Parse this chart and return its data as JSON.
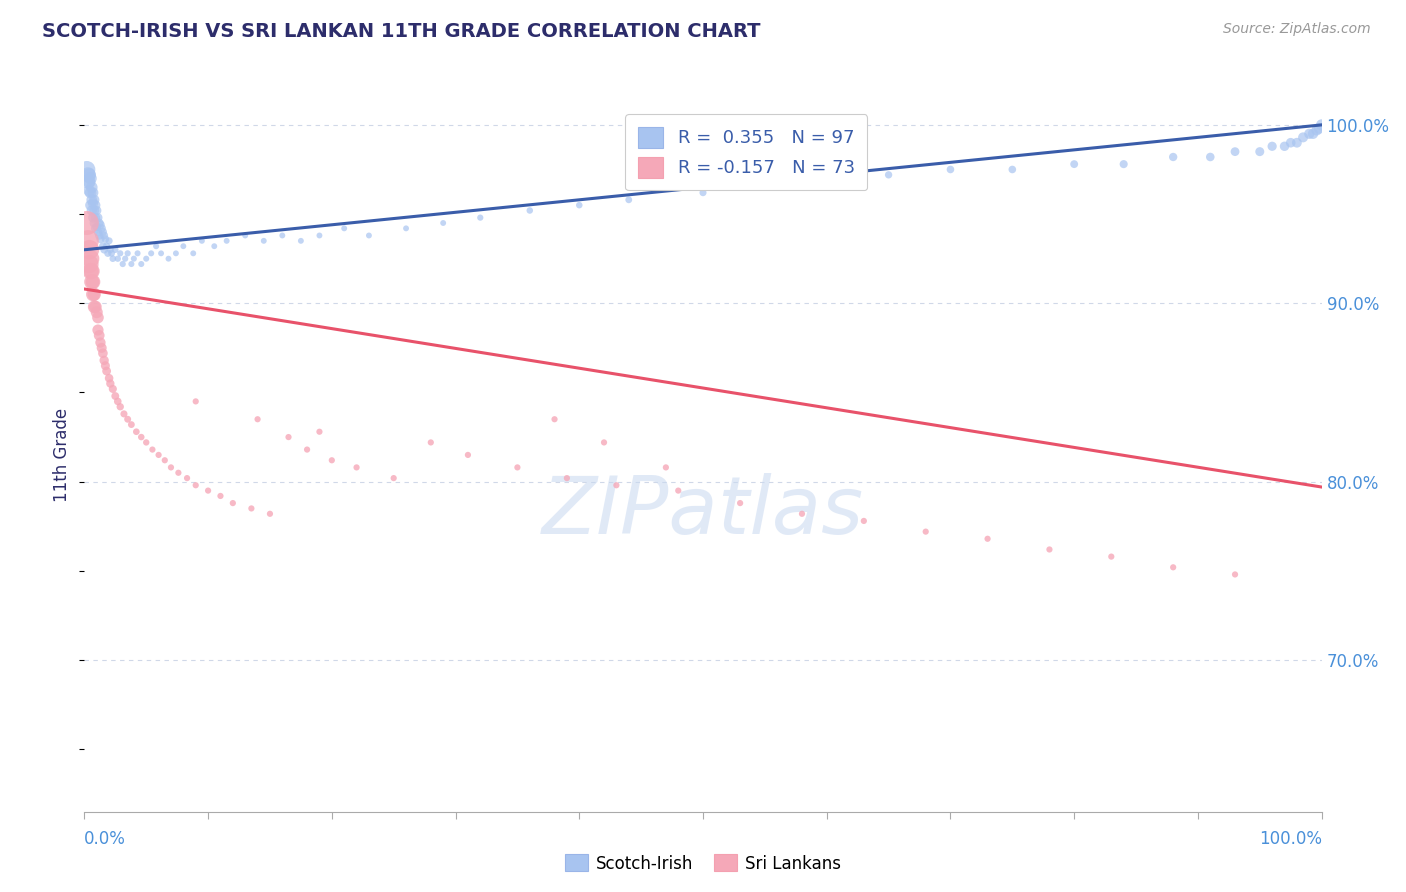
{
  "title": "SCOTCH-IRISH VS SRI LANKAN 11TH GRADE CORRELATION CHART",
  "source": "Source: ZipAtlas.com",
  "ylabel": "11th Grade",
  "xmin": 0.0,
  "xmax": 1.0,
  "ymin": 0.615,
  "ymax": 1.015,
  "yticks": [
    0.7,
    0.8,
    0.9,
    1.0
  ],
  "ytick_labels": [
    "70.0%",
    "80.0%",
    "90.0%",
    "100.0%"
  ],
  "legend_r_blue": "R =  0.355",
  "legend_n_blue": "N = 97",
  "legend_r_pink": "R = -0.157",
  "legend_n_pink": "N = 73",
  "color_blue": "#a8c4f0",
  "color_blue_line": "#3a5daa",
  "color_pink": "#f5a8b8",
  "color_pink_line": "#e8526a",
  "title_color": "#2d2d6b",
  "axis_label_color": "#2d2d6b",
  "tick_color": "#4a90d9",
  "grid_color": "#d0d8e8",
  "watermark": "ZIPatlas",
  "blue_line_x": [
    0.0,
    1.0
  ],
  "blue_line_y": [
    0.93,
    1.0
  ],
  "pink_line_x": [
    0.0,
    1.0
  ],
  "pink_line_y": [
    0.908,
    0.797
  ],
  "scotch_irish_x": [
    0.002,
    0.003,
    0.003,
    0.004,
    0.004,
    0.004,
    0.005,
    0.005,
    0.005,
    0.006,
    0.006,
    0.006,
    0.007,
    0.007,
    0.007,
    0.008,
    0.008,
    0.008,
    0.009,
    0.009,
    0.009,
    0.01,
    0.01,
    0.011,
    0.011,
    0.012,
    0.012,
    0.013,
    0.013,
    0.014,
    0.015,
    0.015,
    0.016,
    0.016,
    0.017,
    0.018,
    0.019,
    0.02,
    0.021,
    0.022,
    0.023,
    0.025,
    0.027,
    0.029,
    0.031,
    0.033,
    0.035,
    0.038,
    0.04,
    0.043,
    0.046,
    0.05,
    0.054,
    0.058,
    0.062,
    0.068,
    0.074,
    0.08,
    0.088,
    0.095,
    0.105,
    0.115,
    0.13,
    0.145,
    0.16,
    0.175,
    0.19,
    0.21,
    0.23,
    0.26,
    0.29,
    0.32,
    0.36,
    0.4,
    0.44,
    0.5,
    0.55,
    0.6,
    0.65,
    0.7,
    0.75,
    0.8,
    0.84,
    0.88,
    0.91,
    0.93,
    0.95,
    0.96,
    0.97,
    0.975,
    0.98,
    0.985,
    0.99,
    0.993,
    0.996,
    0.998,
    1.0
  ],
  "scotch_irish_y": [
    0.975,
    0.972,
    0.968,
    0.972,
    0.968,
    0.963,
    0.97,
    0.962,
    0.955,
    0.965,
    0.958,
    0.952,
    0.962,
    0.956,
    0.948,
    0.958,
    0.952,
    0.945,
    0.955,
    0.948,
    0.942,
    0.952,
    0.943,
    0.948,
    0.94,
    0.945,
    0.938,
    0.944,
    0.936,
    0.942,
    0.94,
    0.932,
    0.938,
    0.93,
    0.936,
    0.932,
    0.928,
    0.935,
    0.93,
    0.928,
    0.925,
    0.93,
    0.925,
    0.928,
    0.922,
    0.925,
    0.928,
    0.922,
    0.925,
    0.928,
    0.922,
    0.925,
    0.928,
    0.932,
    0.928,
    0.925,
    0.928,
    0.932,
    0.928,
    0.935,
    0.932,
    0.935,
    0.938,
    0.935,
    0.938,
    0.935,
    0.938,
    0.942,
    0.938,
    0.942,
    0.945,
    0.948,
    0.952,
    0.955,
    0.958,
    0.962,
    0.965,
    0.968,
    0.972,
    0.975,
    0.975,
    0.978,
    0.978,
    0.982,
    0.982,
    0.985,
    0.985,
    0.988,
    0.988,
    0.99,
    0.99,
    0.993,
    0.995,
    0.995,
    0.997,
    0.998,
    1.0
  ],
  "scotch_irish_sizes": [
    150,
    120,
    100,
    90,
    80,
    70,
    80,
    70,
    60,
    70,
    60,
    55,
    60,
    55,
    50,
    55,
    50,
    45,
    50,
    45,
    42,
    45,
    40,
    42,
    38,
    40,
    36,
    38,
    34,
    36,
    34,
    32,
    32,
    30,
    30,
    28,
    27,
    26,
    25,
    24,
    23,
    22,
    21,
    20,
    20,
    20,
    20,
    19,
    19,
    19,
    19,
    19,
    19,
    19,
    18,
    18,
    18,
    18,
    18,
    18,
    18,
    18,
    18,
    18,
    18,
    18,
    18,
    18,
    18,
    18,
    18,
    20,
    22,
    22,
    24,
    26,
    26,
    28,
    28,
    30,
    30,
    32,
    34,
    36,
    38,
    40,
    42,
    44,
    46,
    48,
    50,
    52,
    54,
    56,
    58,
    60,
    65
  ],
  "sri_lankan_x": [
    0.002,
    0.003,
    0.004,
    0.004,
    0.005,
    0.005,
    0.006,
    0.006,
    0.007,
    0.007,
    0.008,
    0.008,
    0.009,
    0.01,
    0.011,
    0.011,
    0.012,
    0.013,
    0.014,
    0.015,
    0.016,
    0.017,
    0.018,
    0.02,
    0.021,
    0.023,
    0.025,
    0.027,
    0.029,
    0.032,
    0.035,
    0.038,
    0.042,
    0.046,
    0.05,
    0.055,
    0.06,
    0.065,
    0.07,
    0.076,
    0.083,
    0.09,
    0.1,
    0.11,
    0.12,
    0.135,
    0.15,
    0.165,
    0.18,
    0.2,
    0.22,
    0.25,
    0.28,
    0.31,
    0.35,
    0.39,
    0.43,
    0.48,
    0.53,
    0.58,
    0.63,
    0.68,
    0.73,
    0.78,
    0.83,
    0.88,
    0.93,
    0.47,
    0.38,
    0.42,
    0.09,
    0.14,
    0.19
  ],
  "sri_lankan_y": [
    0.945,
    0.935,
    0.93,
    0.922,
    0.925,
    0.918,
    0.918,
    0.912,
    0.912,
    0.905,
    0.905,
    0.898,
    0.898,
    0.895,
    0.892,
    0.885,
    0.882,
    0.878,
    0.875,
    0.872,
    0.868,
    0.865,
    0.862,
    0.858,
    0.855,
    0.852,
    0.848,
    0.845,
    0.842,
    0.838,
    0.835,
    0.832,
    0.828,
    0.825,
    0.822,
    0.818,
    0.815,
    0.812,
    0.808,
    0.805,
    0.802,
    0.798,
    0.795,
    0.792,
    0.788,
    0.785,
    0.782,
    0.825,
    0.818,
    0.812,
    0.808,
    0.802,
    0.822,
    0.815,
    0.808,
    0.802,
    0.798,
    0.795,
    0.788,
    0.782,
    0.778,
    0.772,
    0.768,
    0.762,
    0.758,
    0.752,
    0.748,
    0.808,
    0.835,
    0.822,
    0.845,
    0.835,
    0.828
  ],
  "sri_lankan_sizes": [
    300,
    240,
    200,
    180,
    160,
    140,
    130,
    120,
    110,
    100,
    90,
    85,
    80,
    75,
    70,
    65,
    60,
    55,
    52,
    48,
    45,
    42,
    40,
    38,
    36,
    34,
    32,
    30,
    28,
    26,
    25,
    24,
    23,
    22,
    21,
    20,
    20,
    20,
    20,
    20,
    20,
    20,
    20,
    20,
    20,
    20,
    20,
    20,
    20,
    20,
    20,
    20,
    20,
    20,
    20,
    20,
    20,
    20,
    20,
    20,
    20,
    20,
    20,
    20,
    20,
    20,
    20,
    20,
    20,
    20,
    20,
    20,
    20
  ]
}
